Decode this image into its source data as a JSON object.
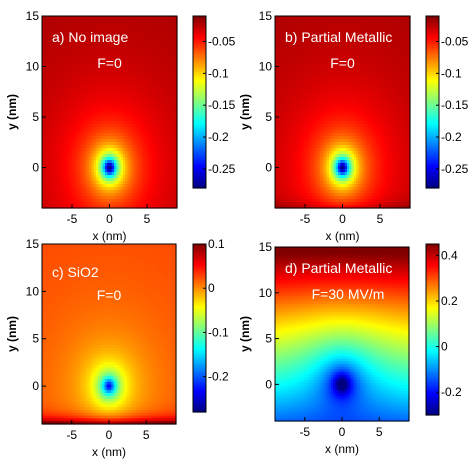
{
  "chart_data": [
    {
      "type": "heatmap",
      "panel_label": "a) No image",
      "field_label": "F=0",
      "xlabel": "x (nm)",
      "ylabel": "y (nm)",
      "xlim": [
        -9,
        9
      ],
      "ylim": [
        -4,
        15
      ],
      "xticks": [
        "-5",
        "0",
        "5"
      ],
      "yticks": [
        "0",
        "5",
        "10",
        "15"
      ],
      "xtick_values": [
        -5,
        0,
        5
      ],
      "ytick_values": [
        0,
        5,
        10,
        15
      ],
      "colorbar_range": [
        -0.28,
        -0.01
      ],
      "colorbar_ticks": [
        "-0.05",
        "-0.1",
        "-0.15",
        "-0.2",
        "-0.25"
      ],
      "colorbar_tick_values": [
        -0.05,
        -0.1,
        -0.15,
        -0.2,
        -0.25
      ],
      "center": [
        0,
        0
      ],
      "field_gradient": 0,
      "substrate_shift": 0,
      "background_value": -0.012,
      "colormap": "jet"
    },
    {
      "type": "heatmap",
      "panel_label": "b) Partial Metallic",
      "field_label": "F=0",
      "xlabel": "x (nm)",
      "ylabel": "y (nm)",
      "xlim": [
        -9,
        9
      ],
      "ylim": [
        -4,
        15
      ],
      "xticks": [
        "-5",
        "0",
        "5"
      ],
      "yticks": [
        "0",
        "5",
        "10",
        "15"
      ],
      "xtick_values": [
        -5,
        0,
        5
      ],
      "ytick_values": [
        0,
        5,
        10,
        15
      ],
      "colorbar_range": [
        -0.28,
        -0.01
      ],
      "colorbar_ticks": [
        "-0.05",
        "-0.1",
        "-0.15",
        "-0.2",
        "-0.25"
      ],
      "colorbar_tick_values": [
        -0.05,
        -0.1,
        -0.15,
        -0.2,
        -0.25
      ],
      "center": [
        0,
        0
      ],
      "field_gradient": 0,
      "substrate_shift": 0.01,
      "background_value": -0.012,
      "colormap": "jet"
    },
    {
      "type": "heatmap",
      "panel_label": "c) SiO2",
      "field_label": "F=0",
      "xlabel": "x (nm)",
      "ylabel": "y (nm)",
      "xlim": [
        -9,
        9
      ],
      "ylim": [
        -4,
        15
      ],
      "xticks": [
        "-5",
        "0",
        "5"
      ],
      "yticks": [
        "0",
        "5",
        "10",
        "15"
      ],
      "xtick_values": [
        -5,
        0,
        5
      ],
      "ytick_values": [
        0,
        5,
        10,
        15
      ],
      "colorbar_range": [
        -0.28,
        0.1
      ],
      "colorbar_ticks": [
        "0.1",
        "0",
        "-0.1",
        "-0.2"
      ],
      "colorbar_tick_values": [
        0.1,
        0,
        -0.1,
        -0.2
      ],
      "center": [
        0,
        0
      ],
      "field_gradient": 0,
      "substrate_shift": 0.07,
      "background_value": 0.035,
      "colormap": "jet"
    },
    {
      "type": "heatmap",
      "panel_label": "d) Partial Metallic",
      "field_label": "F=30 MV/m",
      "xlabel": "x (nm)",
      "ylabel": "y (nm)",
      "xlim": [
        -9,
        9
      ],
      "ylim": [
        -4,
        15
      ],
      "xticks": [
        "-5",
        "0",
        "5"
      ],
      "yticks": [
        "0",
        "5",
        "10",
        "15"
      ],
      "xtick_values": [
        -5,
        0,
        5
      ],
      "ytick_values": [
        0,
        5,
        10,
        15
      ],
      "colorbar_range": [
        -0.3,
        0.45
      ],
      "colorbar_ticks": [
        "0.4",
        "0.2",
        "0",
        "-0.2"
      ],
      "colorbar_tick_values": [
        0.4,
        0.2,
        0,
        -0.2
      ],
      "center": [
        0,
        0
      ],
      "field_gradient": 0.03,
      "substrate_shift": 0,
      "background_value": -0.11,
      "colormap": "jet"
    }
  ]
}
